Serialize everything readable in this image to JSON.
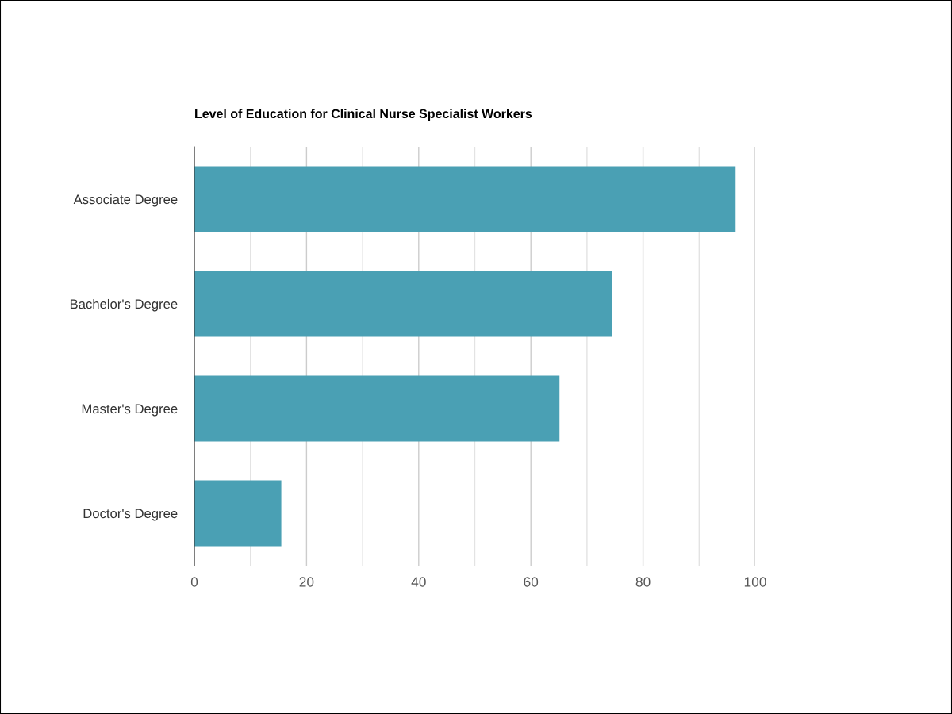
{
  "chart_data": {
    "type": "bar",
    "orientation": "horizontal",
    "title": "Level of Education for Clinical Nurse Specialist Workers",
    "categories": [
      "Associate Degree",
      "Bachelor's Degree",
      "Master's Degree",
      "Doctor's Degree"
    ],
    "values": [
      96.5,
      74.4,
      65.1,
      15.5
    ],
    "color": "#4aa0b4",
    "xlim": [
      0,
      100
    ],
    "xticks": [
      0,
      {
        "value": 10,
        "label": null
      },
      20,
      {
        "value": 30,
        "label": null
      },
      40,
      {
        "value": 50,
        "label": null
      },
      60,
      {
        "value": 70,
        "label": null
      },
      80,
      {
        "value": 90,
        "label": null
      },
      100
    ],
    "grid": "x"
  }
}
